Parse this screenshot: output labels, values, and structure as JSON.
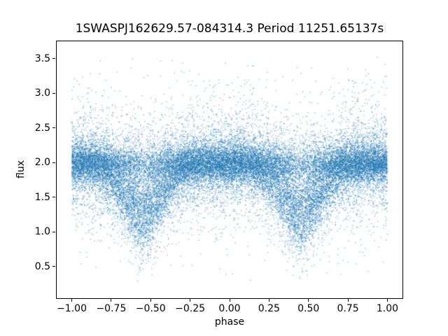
{
  "chart_data": {
    "type": "scatter",
    "title": "1SWASPJ162629.57-084314.3 Period 11251.65137s",
    "xlabel": "phase",
    "ylabel": "flux",
    "xlim": [
      -1.1,
      1.1
    ],
    "ylim": [
      0.03,
      3.76
    ],
    "xticks": [
      -1.0,
      -0.75,
      -0.5,
      -0.25,
      0.0,
      0.25,
      0.5,
      0.75,
      1.0
    ],
    "xtick_labels": [
      "−1.00",
      "−0.75",
      "−0.50",
      "−0.25",
      "0.00",
      "0.25",
      "0.50",
      "0.75",
      "1.00"
    ],
    "yticks": [
      0.5,
      1.0,
      1.5,
      2.0,
      2.5,
      3.0,
      3.5
    ],
    "ytick_labels": [
      "0.5",
      "1.0",
      "1.5",
      "2.0",
      "2.5",
      "3.0",
      "3.5"
    ],
    "grid": false,
    "marker_color": "#1f77b4",
    "n_points": 30000,
    "model": {
      "description": "Phase-folded eclipsing-binary light curve plotted over two cycles: a dense out-of-eclipse band at flux ≈ 2.0 with heavy-tailed vertical scatter spanning ≈ 0.25–3.55, plus V-shaped eclipse clouds hanging below the band, centred at phase −0.55 and +0.45 (half-width ≈ 0.30 in phase), densest around flux ≈ 0.9–1.5 at mid-eclipse with sparse points down to ≈ 0.3.",
      "baseline_flux": 1.98,
      "noise_mix_weights": [
        0.52,
        0.3,
        0.18
      ],
      "noise_sigmas": [
        0.13,
        0.26,
        0.55
      ],
      "eclipse_centers": [
        -0.55,
        0.45
      ],
      "eclipse_half_width": 0.3,
      "eclipse_depth": 1.1,
      "eclipse_min_flux": 0.9,
      "flux_min": 0.24,
      "flux_max": 3.56,
      "seed": 20
    }
  }
}
